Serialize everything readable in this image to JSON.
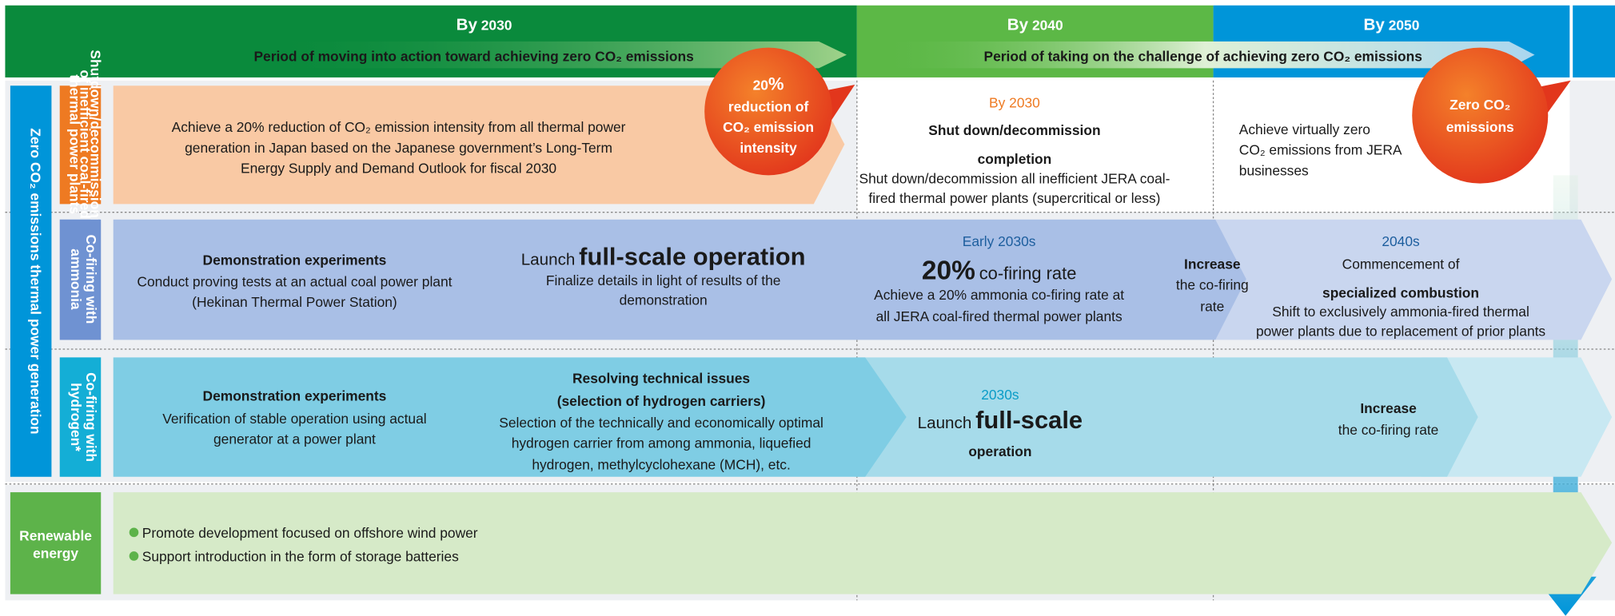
{
  "header": {
    "periods": [
      {
        "by": "By",
        "year": "2030"
      },
      {
        "by": "By",
        "year": "2040"
      },
      {
        "by": "By",
        "year": "2050"
      }
    ],
    "phase1": "Period of moving into action toward achieving zero CO₂ emissions",
    "phase2": "Period of taking on the challenge of achieving zero CO₂ emissions"
  },
  "side_label": "Zero CO₂ emissions thermal power generation",
  "rows": {
    "shutdown": {
      "label": [
        "Shutdown/decommissioning",
        "of inefficient coal-fired",
        "thermal power plants"
      ],
      "text": [
        "Achieve a 20% reduction of CO₂ emission intensity from all thermal power",
        "generation in Japan based on the Japanese government’s Long-Term",
        "Energy Supply and Demand Outlook for fiscal 2030"
      ],
      "badge": {
        "big": "20",
        "unit": "%",
        "lines": [
          "reduction of",
          "CO₂ emission",
          "intensity"
        ]
      },
      "mid": {
        "when": "By 2030",
        "title": [
          "Shut down/decommission",
          "completion"
        ],
        "desc": [
          "Shut down/decommission all inefficient JERA coal-",
          "fired thermal power plants (supercritical or less)"
        ]
      },
      "right": [
        "Achieve virtually zero",
        "CO₂ emissions from JERA",
        "businesses"
      ],
      "badge2": [
        "Zero CO₂",
        "emissions"
      ]
    },
    "ammonia": {
      "label": [
        "Co-firing with",
        "ammonia"
      ],
      "a": {
        "title": "Demonstration experiments",
        "desc": [
          "Conduct proving tests at an actual coal power plant",
          "(Hekinan Thermal Power Station)"
        ]
      },
      "b": {
        "prefix": "Launch",
        "title": "full-scale operation",
        "desc": [
          "Finalize details in light of results of the",
          "demonstration"
        ]
      },
      "c": {
        "when": "Early 2030s",
        "big": "20%",
        "rest": "co-firing rate",
        "desc": [
          "Achieve a 20% ammonia co-firing rate at",
          "all JERA coal-fired thermal power plants"
        ]
      },
      "d": {
        "title": "Increase",
        "desc": [
          "the co-firing",
          "rate"
        ]
      },
      "e": {
        "when": "2040s",
        "pre": "Commencement of",
        "title": "specialized combustion",
        "desc": [
          "Shift to exclusively ammonia-fired thermal",
          "power plants due to replacement of prior plants"
        ]
      }
    },
    "hydrogen": {
      "label": [
        "Co-firing with",
        "hydrogen*"
      ],
      "a": {
        "title": "Demonstration experiments",
        "desc": [
          "Verification of stable operation using actual",
          "generator at a power plant"
        ]
      },
      "b": {
        "title": [
          "Resolving technical issues",
          "(selection of hydrogen carriers)"
        ],
        "desc": [
          "Selection of the technically and economically optimal",
          "hydrogen carrier from among ammonia, liquefied",
          "hydrogen, methylcyclohexane (MCH), etc."
        ]
      },
      "c": {
        "when": "2030s",
        "prefix": "Launch",
        "title": [
          "full-scale",
          "operation"
        ]
      },
      "d": {
        "title": "Increase",
        "desc": "the co-firing rate"
      }
    },
    "renewable": {
      "label": [
        "Renewable",
        "energy"
      ],
      "bullets": [
        "Promote development focused on offshore wind power",
        "Support introduction in the form of storage batteries"
      ]
    }
  }
}
